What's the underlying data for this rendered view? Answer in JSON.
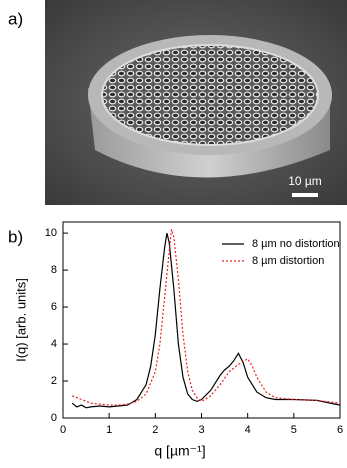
{
  "figure": {
    "panel_a_label": "a)",
    "panel_b_label": "b)",
    "scale_bar_label": "10 µm"
  },
  "chart_data": {
    "type": "line",
    "x_label": "q [µm⁻¹]",
    "y_label": "I(q) [arb. units]",
    "xlim": [
      0,
      6
    ],
    "xticks": [
      0,
      1,
      2,
      3,
      4,
      5,
      6
    ],
    "ylim": [
      0,
      10.6
    ],
    "yticks": [
      0,
      2,
      4,
      6,
      8,
      10
    ],
    "legend_position": "upper right",
    "series": [
      {
        "name": "8 µm no distortion",
        "color": "#000000",
        "style": "solid",
        "x": [
          0.2,
          0.3,
          0.4,
          0.5,
          0.6,
          0.8,
          1.0,
          1.2,
          1.4,
          1.6,
          1.8,
          1.9,
          2.0,
          2.1,
          2.2,
          2.25,
          2.3,
          2.4,
          2.5,
          2.6,
          2.7,
          2.8,
          2.9,
          3.0,
          3.2,
          3.4,
          3.5,
          3.6,
          3.7,
          3.8,
          3.9,
          4.0,
          4.2,
          4.4,
          4.6,
          5.0,
          5.5,
          6.0
        ],
        "values": [
          0.8,
          0.6,
          0.7,
          0.55,
          0.6,
          0.65,
          0.6,
          0.65,
          0.7,
          1.0,
          1.8,
          2.8,
          4.5,
          7.0,
          9.2,
          10.0,
          9.5,
          7.0,
          4.0,
          2.2,
          1.3,
          1.0,
          0.9,
          1.0,
          1.5,
          2.3,
          2.6,
          2.8,
          3.1,
          3.5,
          3.0,
          2.2,
          1.4,
          1.1,
          1.0,
          1.0,
          0.95,
          0.7
        ]
      },
      {
        "name": "8 µm distortion",
        "color": "#e8201c",
        "style": "dotted",
        "x": [
          0.2,
          0.4,
          0.6,
          0.8,
          1.0,
          1.2,
          1.4,
          1.6,
          1.8,
          2.0,
          2.1,
          2.2,
          2.3,
          2.35,
          2.4,
          2.5,
          2.6,
          2.7,
          2.8,
          2.9,
          3.0,
          3.2,
          3.4,
          3.6,
          3.8,
          4.0,
          4.1,
          4.2,
          4.4,
          4.6,
          5.0,
          5.5,
          6.0
        ],
        "values": [
          1.2,
          1.0,
          0.8,
          0.75,
          0.7,
          0.7,
          0.75,
          0.9,
          1.3,
          2.5,
          4.0,
          6.5,
          9.0,
          10.2,
          9.8,
          7.5,
          4.5,
          2.5,
          1.5,
          1.1,
          0.9,
          1.2,
          1.8,
          2.5,
          2.9,
          3.2,
          2.8,
          2.2,
          1.4,
          1.1,
          1.0,
          0.95,
          0.8
        ]
      }
    ]
  }
}
